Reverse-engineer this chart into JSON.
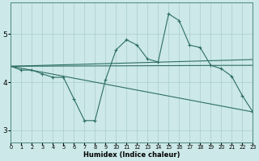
{
  "xlabel": "Humidex (Indice chaleur)",
  "bg_color": "#cce8e8",
  "line_color": "#2d6e65",
  "grid_color": "#aacccc",
  "xlim": [
    0,
    23
  ],
  "ylim": [
    2.75,
    5.65
  ],
  "xticks": [
    0,
    1,
    2,
    3,
    4,
    5,
    6,
    7,
    8,
    9,
    10,
    11,
    12,
    13,
    14,
    15,
    16,
    17,
    18,
    19,
    20,
    21,
    22,
    23
  ],
  "yticks": [
    3,
    4,
    5
  ],
  "line1_x": [
    0,
    1,
    2,
    3,
    4,
    5,
    6,
    7,
    8,
    9,
    10,
    11,
    12,
    13,
    14,
    15,
    16,
    17,
    18,
    19,
    20,
    21,
    22,
    23
  ],
  "line1_y": [
    4.33,
    4.25,
    4.25,
    4.17,
    4.1,
    4.1,
    3.65,
    3.2,
    3.2,
    4.05,
    4.67,
    4.88,
    4.77,
    4.48,
    4.42,
    5.42,
    5.28,
    4.77,
    4.72,
    4.35,
    4.28,
    4.12,
    3.72,
    3.38
  ],
  "line2_x": [
    0,
    23
  ],
  "line2_y": [
    4.33,
    4.47
  ],
  "line3_x": [
    0,
    23
  ],
  "line3_y": [
    4.33,
    4.35
  ],
  "line4_x": [
    0,
    23
  ],
  "line4_y": [
    4.33,
    3.38
  ],
  "marker_x": [
    0,
    1,
    2,
    3,
    4,
    5,
    6,
    7,
    8,
    9,
    10,
    11,
    12,
    13,
    14,
    15,
    16,
    17,
    18,
    19,
    20,
    21,
    22,
    23
  ],
  "marker_y": [
    4.33,
    4.25,
    4.25,
    4.17,
    4.1,
    4.1,
    3.65,
    3.2,
    3.2,
    4.05,
    4.67,
    4.88,
    4.77,
    4.48,
    4.42,
    5.42,
    5.28,
    4.77,
    4.72,
    4.35,
    4.28,
    4.12,
    3.72,
    3.38
  ]
}
